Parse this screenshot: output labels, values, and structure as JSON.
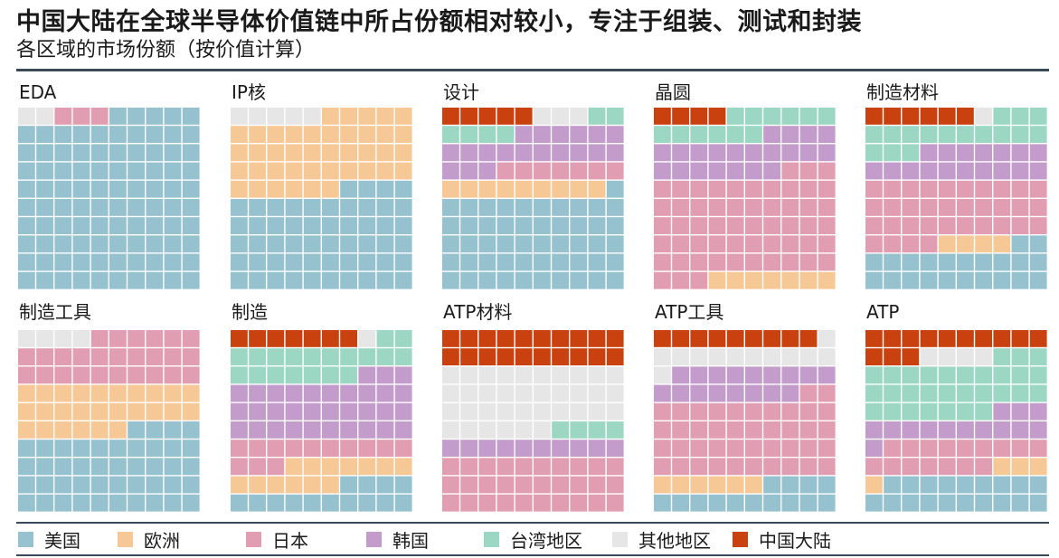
{
  "title": "中国大陆在全球半导体价值链中所占份额相对较小，专注于组装、测试和封装",
  "subtitle": "各区域的市场份额（按价值计算）",
  "colors": {
    "us": "#96c1cf",
    "eu": "#f6c896",
    "jp": "#e19db1",
    "kr": "#c39ccb",
    "tw": "#9bd7c3",
    "other": "#e6e6e6",
    "cn": "#c9410f"
  },
  "legend": [
    {
      "key": "us",
      "label": "美国"
    },
    {
      "key": "eu",
      "label": "欧洲"
    },
    {
      "key": "jp",
      "label": "日本"
    },
    {
      "key": "kr",
      "label": "韩国"
    },
    {
      "key": "tw",
      "label": "台湾地区"
    },
    {
      "key": "other",
      "label": "其他地区"
    },
    {
      "key": "cn",
      "label": "中国大陆"
    }
  ],
  "chart_data": {
    "type": "waffle",
    "grid": "10x10",
    "unit": "%",
    "series_order": [
      "中国大陆",
      "其他地区",
      "台湾地区",
      "韩国",
      "日本",
      "欧洲",
      "美国"
    ],
    "panels": [
      {
        "name": "EDA",
        "values": {
          "中国大陆": 0,
          "其他地区": 2,
          "台湾地区": 0,
          "韩国": 0,
          "日本": 3,
          "欧洲": 0,
          "美国": 95
        }
      },
      {
        "name": "IP核",
        "values": {
          "中国大陆": 0,
          "其他地区": 5,
          "台湾地区": 0,
          "韩国": 0,
          "日本": 0,
          "欧洲": 41,
          "美国": 54
        }
      },
      {
        "name": "设计",
        "values": {
          "中国大陆": 5,
          "其他地区": 3,
          "台湾地区": 6,
          "韩国": 19,
          "日本": 7,
          "欧洲": 9,
          "美国": 51
        }
      },
      {
        "name": "晶圆",
        "values": {
          "中国大陆": 4,
          "其他地区": 0,
          "台湾地区": 12,
          "韩国": 21,
          "日本": 56,
          "欧洲": 7,
          "美国": 0
        }
      },
      {
        "name": "制造材料",
        "values": {
          "中国大陆": 6,
          "其他地区": 1,
          "台湾地区": 16,
          "韩国": 17,
          "日本": 34,
          "欧洲": 4,
          "美国": 22
        }
      },
      {
        "name": "制造工具",
        "values": {
          "中国大陆": 0,
          "其他地区": 4,
          "台湾地区": 0,
          "韩国": 0,
          "日本": 26,
          "欧洲": 26,
          "美国": 44
        }
      },
      {
        "name": "制造",
        "values": {
          "中国大陆": 7,
          "其他地区": 1,
          "台湾地区": 19,
          "韩国": 33,
          "日本": 13,
          "欧洲": 13,
          "美国": 14
        }
      },
      {
        "name": "ATP材料",
        "values": {
          "中国大陆": 20,
          "其他地区": 36,
          "台湾地区": 4,
          "韩国": 10,
          "日本": 30,
          "欧洲": 0,
          "美国": 0
        }
      },
      {
        "name": "ATP工具",
        "values": {
          "中国大陆": 9,
          "其他地区": 12,
          "台湾地区": 0,
          "韩国": 17,
          "日本": 42,
          "欧洲": 6,
          "美国": 14
        }
      },
      {
        "name": "ATP",
        "values": {
          "中国大陆": 13,
          "其他地区": 4,
          "台湾地区": 30,
          "韩国": 14,
          "日本": 16,
          "欧洲": 4,
          "美国": 19
        }
      }
    ]
  }
}
